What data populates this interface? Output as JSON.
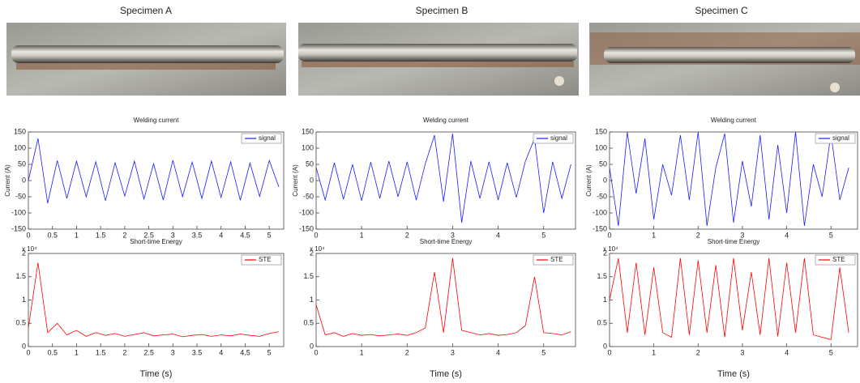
{
  "chart_data": [
    {
      "type": "line",
      "header": "Specimen A",
      "title": "Welding current",
      "ylabel": "Current (A)",
      "xlim": [
        0,
        5.3
      ],
      "xticks": [
        0,
        0.5,
        1,
        1.5,
        2,
        2.5,
        3,
        3.5,
        4,
        4.5,
        5
      ],
      "ylim": [
        -150,
        150
      ],
      "yticks": [
        -150,
        -100,
        -50,
        0,
        50,
        100,
        150
      ],
      "legend": "upper right",
      "x": [
        0,
        0.2,
        0.4,
        0.6,
        0.8,
        1,
        1.2,
        1.4,
        1.6,
        1.8,
        2,
        2.2,
        2.4,
        2.6,
        2.8,
        3,
        3.2,
        3.4,
        3.6,
        3.8,
        4,
        4.2,
        4.4,
        4.6,
        4.8,
        5,
        5.2
      ],
      "series": [
        {
          "name": "signal",
          "color": "#1a1aff",
          "values": [
            0,
            130,
            -70,
            62,
            -55,
            60,
            -50,
            58,
            -62,
            55,
            -48,
            60,
            -57,
            52,
            -60,
            63,
            -50,
            57,
            -55,
            60,
            -52,
            58,
            -61,
            54,
            -49,
            62,
            -20
          ]
        }
      ]
    },
    {
      "type": "line",
      "title": "Short-time Energy",
      "xlabel": "Time (s)",
      "y_exponent": "x 10⁴",
      "xlim": [
        0,
        5.3
      ],
      "xticks": [
        0,
        0.5,
        1,
        1.5,
        2,
        2.5,
        3,
        3.5,
        4,
        4.5,
        5
      ],
      "ylim": [
        0,
        20000
      ],
      "yticks": [
        0,
        {
          "value": 5000,
          "label": "0.5"
        },
        {
          "value": 10000,
          "label": "1"
        },
        {
          "value": 15000,
          "label": "1.5"
        },
        {
          "value": 20000,
          "label": "2"
        }
      ],
      "legend": "upper right",
      "x": [
        0,
        0.2,
        0.4,
        0.6,
        0.8,
        1,
        1.2,
        1.4,
        1.6,
        1.8,
        2,
        2.2,
        2.4,
        2.6,
        2.8,
        3,
        3.2,
        3.4,
        3.6,
        3.8,
        4,
        4.2,
        4.4,
        4.6,
        4.8,
        5,
        5.2
      ],
      "series": [
        {
          "name": "STE",
          "color": "#ff0000",
          "values": [
            4000,
            18000,
            3000,
            5000,
            2500,
            3500,
            2200,
            3000,
            2400,
            2800,
            2200,
            2600,
            3000,
            2300,
            2500,
            2700,
            2100,
            2400,
            2600,
            2200,
            2500,
            2300,
            2700,
            2400,
            2200,
            2800,
            3200
          ]
        }
      ]
    },
    {
      "type": "line",
      "header": "Specimen B",
      "title": "Welding current",
      "ylabel": "Current (A)",
      "xlim": [
        0,
        5.7
      ],
      "xticks": [
        0,
        1,
        2,
        3,
        4,
        5
      ],
      "ylim": [
        -150,
        150
      ],
      "yticks": [
        -150,
        -100,
        -50,
        0,
        50,
        100,
        150
      ],
      "legend": "upper right",
      "x": [
        0,
        0.2,
        0.4,
        0.6,
        0.8,
        1,
        1.2,
        1.4,
        1.6,
        1.8,
        2,
        2.2,
        2.4,
        2.6,
        2.8,
        3,
        3.2,
        3.4,
        3.6,
        3.8,
        4,
        4.2,
        4.4,
        4.6,
        4.8,
        5,
        5.2,
        5.4,
        5.6
      ],
      "series": [
        {
          "name": "signal",
          "color": "#1a1aff",
          "values": [
            40,
            -60,
            55,
            -58,
            50,
            -62,
            57,
            -55,
            60,
            -50,
            58,
            -60,
            52,
            140,
            -65,
            145,
            -130,
            60,
            -55,
            58,
            -60,
            55,
            -52,
            60,
            130,
            -100,
            58,
            -55,
            50
          ]
        }
      ]
    },
    {
      "type": "line",
      "title": "Short-time Energy",
      "xlabel": "Time (s)",
      "y_exponent": "x 10⁴",
      "xlim": [
        0,
        5.7
      ],
      "xticks": [
        0,
        1,
        2,
        3,
        4,
        5
      ],
      "ylim": [
        0,
        20000
      ],
      "yticks": [
        0,
        {
          "value": 5000,
          "label": "0.5"
        },
        {
          "value": 10000,
          "label": "1"
        },
        {
          "value": 15000,
          "label": "1.5"
        },
        {
          "value": 20000,
          "label": "2"
        }
      ],
      "legend": "upper right",
      "x": [
        0,
        0.2,
        0.4,
        0.6,
        0.8,
        1,
        1.2,
        1.4,
        1.6,
        1.8,
        2,
        2.2,
        2.4,
        2.6,
        2.8,
        3,
        3.2,
        3.4,
        3.6,
        3.8,
        4,
        4.2,
        4.4,
        4.6,
        4.8,
        5,
        5.2,
        5.4,
        5.6
      ],
      "series": [
        {
          "name": "STE",
          "color": "#ff0000",
          "values": [
            9000,
            2500,
            3000,
            2200,
            2800,
            2400,
            2600,
            2300,
            2500,
            2700,
            2400,
            3000,
            4000,
            16000,
            3000,
            19000,
            3500,
            3000,
            2500,
            2800,
            2400,
            2600,
            3000,
            4500,
            15000,
            3000,
            2800,
            2500,
            3200
          ]
        }
      ]
    },
    {
      "type": "line",
      "header": "Specimen C",
      "title": "Welding current",
      "ylabel": "Current (A)",
      "xlim": [
        0,
        5.6
      ],
      "xticks": [
        0,
        1,
        2,
        3,
        4,
        5
      ],
      "ylim": [
        -150,
        150
      ],
      "yticks": [
        -150,
        -100,
        -50,
        0,
        50,
        100,
        150
      ],
      "legend": "upper right",
      "x": [
        0,
        0.2,
        0.4,
        0.6,
        0.8,
        1,
        1.2,
        1.4,
        1.6,
        1.8,
        2,
        2.2,
        2.4,
        2.6,
        2.8,
        3,
        3.2,
        3.4,
        3.6,
        3.8,
        4,
        4.2,
        4.4,
        4.6,
        4.8,
        5,
        5.2,
        5.4
      ],
      "series": [
        {
          "name": "signal",
          "color": "#1a1aff",
          "values": [
            40,
            -140,
            150,
            -40,
            130,
            -120,
            50,
            -45,
            140,
            -60,
            150,
            -140,
            40,
            145,
            -130,
            60,
            -80,
            140,
            -120,
            110,
            -100,
            150,
            -140,
            50,
            -50,
            145,
            -60,
            40
          ]
        }
      ]
    },
    {
      "type": "line",
      "title": "Short-time Energy",
      "xlabel": "Time (s)",
      "y_exponent": "x 10⁴",
      "xlim": [
        0,
        5.6
      ],
      "xticks": [
        0,
        1,
        2,
        3,
        4,
        5
      ],
      "ylim": [
        0,
        20000
      ],
      "yticks": [
        0,
        {
          "value": 5000,
          "label": "0.5"
        },
        {
          "value": 10000,
          "label": "1"
        },
        {
          "value": 15000,
          "label": "1.5"
        },
        {
          "value": 20000,
          "label": "2"
        }
      ],
      "legend": "upper right",
      "x": [
        0,
        0.2,
        0.4,
        0.6,
        0.8,
        1,
        1.2,
        1.4,
        1.6,
        1.8,
        2,
        2.2,
        2.4,
        2.6,
        2.8,
        3,
        3.2,
        3.4,
        3.6,
        3.8,
        4,
        4.2,
        4.4,
        4.6,
        4.8,
        5,
        5.2,
        5.4
      ],
      "series": [
        {
          "name": "STE",
          "color": "#ff0000",
          "values": [
            10000,
            19000,
            3000,
            18000,
            2500,
            17000,
            3000,
            2000,
            19000,
            2500,
            18500,
            3000,
            17500,
            2000,
            19000,
            3500,
            16000,
            2500,
            19000,
            2200,
            18000,
            3000,
            19000,
            2500,
            2000,
            1500,
            17000,
            3000
          ]
        }
      ]
    }
  ]
}
